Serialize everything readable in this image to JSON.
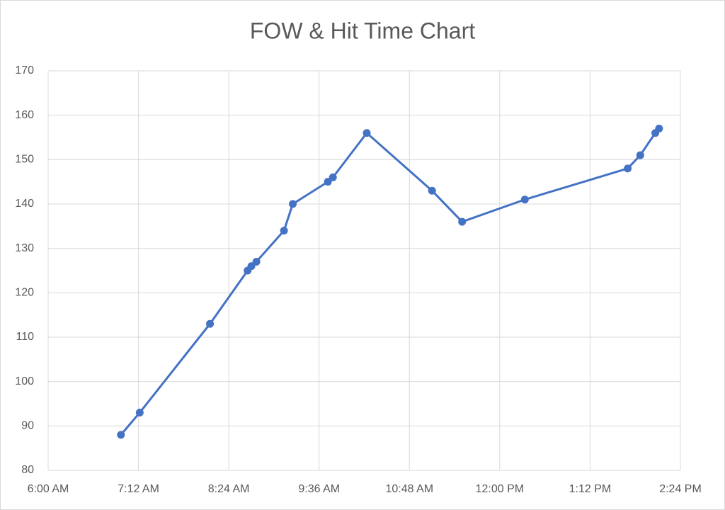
{
  "chart_data": {
    "type": "line",
    "title": "FOW & Hit Time Chart",
    "x": [
      418,
      433,
      489,
      519,
      522,
      526,
      548,
      555,
      583,
      587,
      614,
      666,
      690,
      740,
      822,
      832,
      844,
      847
    ],
    "series": [
      {
        "color": "#4472c4",
        "values": [
          88,
          93,
          113,
          125,
          126,
          127,
          134,
          140,
          145,
          146,
          156,
          143,
          136,
          141,
          148,
          151,
          156,
          157
        ]
      }
    ],
    "xlim": [
      360,
      864
    ],
    "xticks": [
      {
        "value": 360,
        "label": "6:00 AM"
      },
      {
        "value": 432,
        "label": "7:12 AM"
      },
      {
        "value": 504,
        "label": "8:24 AM"
      },
      {
        "value": 576,
        "label": "9:36 AM"
      },
      {
        "value": 648,
        "label": "10:48 AM"
      },
      {
        "value": 720,
        "label": "12:00 PM"
      },
      {
        "value": 792,
        "label": "1:12 PM"
      },
      {
        "value": 864,
        "label": "2:24 PM"
      }
    ],
    "ylim": [
      80,
      170
    ],
    "yticks": [
      80,
      90,
      100,
      110,
      120,
      130,
      140,
      150,
      160,
      170
    ],
    "grid": true
  }
}
